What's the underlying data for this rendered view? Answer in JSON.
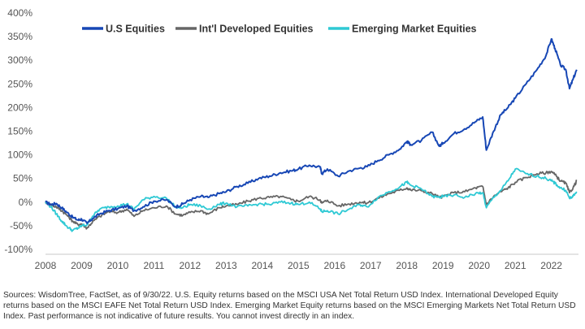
{
  "chart_data": {
    "type": "line",
    "title": "",
    "xlabel": "",
    "ylabel": "",
    "xlim": [
      2008,
      2022.75
    ],
    "ylim": [
      -100,
      400
    ],
    "x_ticks": [
      2008,
      2009,
      2010,
      2011,
      2012,
      2013,
      2014,
      2015,
      2016,
      2017,
      2018,
      2019,
      2020,
      2021,
      2022
    ],
    "x_tick_labels": [
      "2008",
      "2009",
      "2010",
      "2011",
      "2012",
      "2013",
      "2014",
      "2015",
      "2016",
      "2017",
      "2018",
      "2019",
      "2020",
      "2021",
      "2022"
    ],
    "y_ticks": [
      -100,
      -50,
      0,
      50,
      100,
      150,
      200,
      250,
      300,
      350,
      400
    ],
    "y_tick_labels": [
      "-100%",
      "-50%",
      "0%",
      "50%",
      "100%",
      "150%",
      "200%",
      "250%",
      "300%",
      "350%",
      "400%"
    ],
    "grid": false,
    "legend_position": "top",
    "series": [
      {
        "name": "U.S Equities",
        "color": "#1747b5",
        "points": [
          [
            2008.0,
            0
          ],
          [
            2008.15,
            -5
          ],
          [
            2008.3,
            -3
          ],
          [
            2008.45,
            -12
          ],
          [
            2008.6,
            -22
          ],
          [
            2008.75,
            -32
          ],
          [
            2008.9,
            -38
          ],
          [
            2009.0,
            -36
          ],
          [
            2009.15,
            -45
          ],
          [
            2009.3,
            -35
          ],
          [
            2009.5,
            -25
          ],
          [
            2009.75,
            -18
          ],
          [
            2010.0,
            -14
          ],
          [
            2010.25,
            -8
          ],
          [
            2010.45,
            -18
          ],
          [
            2010.7,
            -10
          ],
          [
            2011.0,
            2
          ],
          [
            2011.35,
            5
          ],
          [
            2011.6,
            -10
          ],
          [
            2011.8,
            -4
          ],
          [
            2012.0,
            5
          ],
          [
            2012.3,
            12
          ],
          [
            2012.5,
            10
          ],
          [
            2012.8,
            18
          ],
          [
            2013.0,
            22
          ],
          [
            2013.3,
            33
          ],
          [
            2013.6,
            40
          ],
          [
            2013.9,
            50
          ],
          [
            2014.2,
            55
          ],
          [
            2014.5,
            62
          ],
          [
            2014.8,
            66
          ],
          [
            2015.0,
            70
          ],
          [
            2015.3,
            78
          ],
          [
            2015.6,
            74
          ],
          [
            2015.65,
            60
          ],
          [
            2015.8,
            70
          ],
          [
            2016.1,
            55
          ],
          [
            2016.4,
            66
          ],
          [
            2016.7,
            72
          ],
          [
            2016.9,
            75
          ],
          [
            2017.2,
            88
          ],
          [
            2017.5,
            100
          ],
          [
            2017.8,
            112
          ],
          [
            2018.0,
            128
          ],
          [
            2018.1,
            122
          ],
          [
            2018.4,
            130
          ],
          [
            2018.7,
            148
          ],
          [
            2018.9,
            118
          ],
          [
            2019.0,
            125
          ],
          [
            2019.3,
            145
          ],
          [
            2019.6,
            155
          ],
          [
            2019.9,
            170
          ],
          [
            2020.1,
            180
          ],
          [
            2020.2,
            110
          ],
          [
            2020.4,
            150
          ],
          [
            2020.6,
            185
          ],
          [
            2020.8,
            200
          ],
          [
            2021.0,
            220
          ],
          [
            2021.3,
            250
          ],
          [
            2021.6,
            280
          ],
          [
            2021.85,
            310
          ],
          [
            2022.0,
            345
          ],
          [
            2022.1,
            325
          ],
          [
            2022.25,
            290
          ],
          [
            2022.4,
            280
          ],
          [
            2022.5,
            240
          ],
          [
            2022.6,
            260
          ],
          [
            2022.7,
            280
          ]
        ]
      },
      {
        "name": "Int'l Developed Equities",
        "color": "#666666",
        "points": [
          [
            2008.0,
            0
          ],
          [
            2008.15,
            -6
          ],
          [
            2008.3,
            -10
          ],
          [
            2008.45,
            -18
          ],
          [
            2008.6,
            -28
          ],
          [
            2008.75,
            -40
          ],
          [
            2008.9,
            -48
          ],
          [
            2009.0,
            -46
          ],
          [
            2009.15,
            -55
          ],
          [
            2009.3,
            -42
          ],
          [
            2009.5,
            -30
          ],
          [
            2009.75,
            -20
          ],
          [
            2010.0,
            -22
          ],
          [
            2010.25,
            -15
          ],
          [
            2010.45,
            -30
          ],
          [
            2010.7,
            -18
          ],
          [
            2011.0,
            -12
          ],
          [
            2011.35,
            -8
          ],
          [
            2011.6,
            -25
          ],
          [
            2011.8,
            -28
          ],
          [
            2012.0,
            -22
          ],
          [
            2012.3,
            -18
          ],
          [
            2012.5,
            -25
          ],
          [
            2012.8,
            -12
          ],
          [
            2013.0,
            -8
          ],
          [
            2013.3,
            -5
          ],
          [
            2013.6,
            2
          ],
          [
            2013.9,
            8
          ],
          [
            2014.2,
            10
          ],
          [
            2014.5,
            12
          ],
          [
            2014.8,
            5
          ],
          [
            2015.0,
            2
          ],
          [
            2015.3,
            12
          ],
          [
            2015.6,
            5
          ],
          [
            2015.65,
            -2
          ],
          [
            2015.8,
            4
          ],
          [
            2016.1,
            -8
          ],
          [
            2016.4,
            -4
          ],
          [
            2016.7,
            0
          ],
          [
            2016.9,
            -2
          ],
          [
            2017.2,
            8
          ],
          [
            2017.5,
            18
          ],
          [
            2017.8,
            25
          ],
          [
            2018.0,
            30
          ],
          [
            2018.1,
            26
          ],
          [
            2018.4,
            24
          ],
          [
            2018.7,
            18
          ],
          [
            2018.9,
            10
          ],
          [
            2019.0,
            12
          ],
          [
            2019.3,
            20
          ],
          [
            2019.6,
            22
          ],
          [
            2019.9,
            30
          ],
          [
            2020.1,
            33
          ],
          [
            2020.2,
            -5
          ],
          [
            2020.4,
            12
          ],
          [
            2020.6,
            22
          ],
          [
            2020.8,
            30
          ],
          [
            2021.0,
            42
          ],
          [
            2021.3,
            52
          ],
          [
            2021.6,
            60
          ],
          [
            2021.85,
            62
          ],
          [
            2022.0,
            65
          ],
          [
            2022.1,
            58
          ],
          [
            2022.25,
            45
          ],
          [
            2022.4,
            40
          ],
          [
            2022.5,
            20
          ],
          [
            2022.6,
            30
          ],
          [
            2022.7,
            45
          ]
        ]
      },
      {
        "name": "Emerging Market Equities",
        "color": "#2ec9d4",
        "points": [
          [
            2008.0,
            0
          ],
          [
            2008.15,
            -10
          ],
          [
            2008.3,
            -25
          ],
          [
            2008.45,
            -40
          ],
          [
            2008.6,
            -52
          ],
          [
            2008.75,
            -60
          ],
          [
            2008.9,
            -55
          ],
          [
            2009.0,
            -50
          ],
          [
            2009.15,
            -48
          ],
          [
            2009.3,
            -30
          ],
          [
            2009.5,
            -15
          ],
          [
            2009.75,
            -10
          ],
          [
            2010.0,
            -8
          ],
          [
            2010.25,
            -4
          ],
          [
            2010.45,
            -15
          ],
          [
            2010.7,
            5
          ],
          [
            2011.0,
            12
          ],
          [
            2011.35,
            8
          ],
          [
            2011.6,
            -10
          ],
          [
            2011.8,
            -12
          ],
          [
            2012.0,
            -5
          ],
          [
            2012.3,
            -8
          ],
          [
            2012.5,
            -15
          ],
          [
            2012.8,
            -5
          ],
          [
            2013.0,
            -2
          ],
          [
            2013.3,
            -10
          ],
          [
            2013.6,
            -8
          ],
          [
            2013.9,
            -4
          ],
          [
            2014.2,
            -5
          ],
          [
            2014.5,
            0
          ],
          [
            2014.8,
            -2
          ],
          [
            2015.0,
            -5
          ],
          [
            2015.3,
            0
          ],
          [
            2015.6,
            -15
          ],
          [
            2015.65,
            -20
          ],
          [
            2015.8,
            -18
          ],
          [
            2016.1,
            -25
          ],
          [
            2016.4,
            -15
          ],
          [
            2016.7,
            -5
          ],
          [
            2016.9,
            -10
          ],
          [
            2017.2,
            10
          ],
          [
            2017.5,
            22
          ],
          [
            2017.8,
            32
          ],
          [
            2018.0,
            42
          ],
          [
            2018.1,
            36
          ],
          [
            2018.4,
            28
          ],
          [
            2018.7,
            12
          ],
          [
            2018.9,
            10
          ],
          [
            2019.0,
            12
          ],
          [
            2019.3,
            15
          ],
          [
            2019.6,
            10
          ],
          [
            2019.9,
            18
          ],
          [
            2020.1,
            20
          ],
          [
            2020.2,
            -12
          ],
          [
            2020.4,
            10
          ],
          [
            2020.6,
            25
          ],
          [
            2020.8,
            45
          ],
          [
            2021.0,
            70
          ],
          [
            2021.3,
            60
          ],
          [
            2021.6,
            55
          ],
          [
            2021.85,
            50
          ],
          [
            2022.0,
            45
          ],
          [
            2022.1,
            40
          ],
          [
            2022.25,
            30
          ],
          [
            2022.4,
            25
          ],
          [
            2022.5,
            8
          ],
          [
            2022.6,
            12
          ],
          [
            2022.7,
            22
          ]
        ]
      }
    ]
  },
  "footnote": "Sources: WisdomTree, FactSet, as of 9/30/22. U.S. Equity returns based on the MSCI USA Net Total Return USD Index. International Developed Equity returns based on the MSCI EAFE Net Total Return USD Index. Emerging Market Equity returns based on the MSCI Emerging Markets Net Total Return USD Index. Past performance is not indicative of future results. You cannot invest directly in an index."
}
